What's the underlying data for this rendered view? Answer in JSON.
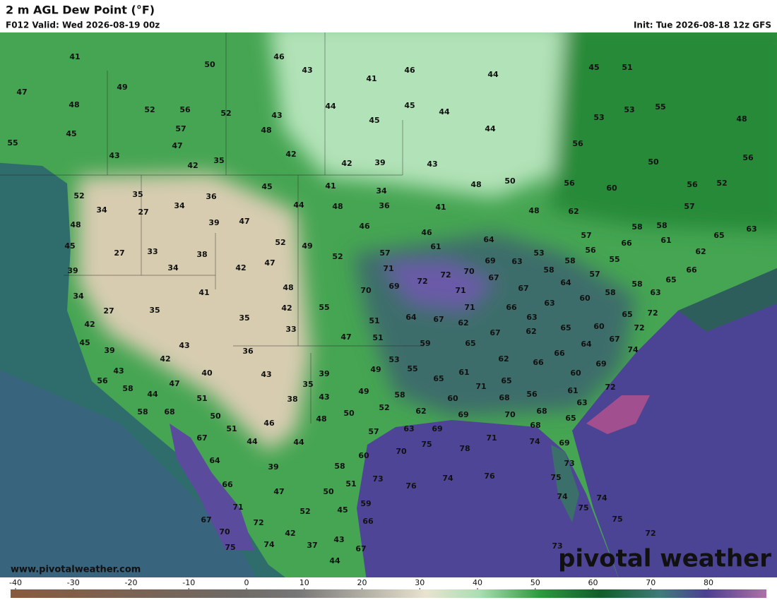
{
  "header": {
    "title": "2 m AGL Dew Point (°F)",
    "valid": "F012 Valid: Wed 2026-08-19 00z",
    "init": "Init: Tue 2026-08-18 12z GFS"
  },
  "map": {
    "labels": [
      41,
      47,
      49,
      48,
      45,
      55,
      43,
      50,
      46,
      43,
      41,
      46,
      44,
      45,
      51,
      52,
      56,
      52,
      43,
      44,
      45,
      44,
      53,
      55,
      48,
      57,
      48,
      45,
      44,
      53,
      47,
      56,
      42,
      35,
      42,
      42,
      39,
      43,
      50,
      56,
      52,
      35,
      36,
      45,
      41,
      34,
      48,
      50,
      56,
      60,
      56,
      52,
      34,
      27,
      34,
      44,
      48,
      36,
      41,
      48,
      62,
      57,
      48,
      39,
      47,
      46,
      46,
      58,
      58,
      65,
      63,
      45,
      27,
      33,
      38,
      52,
      49,
      61,
      64,
      57,
      66,
      61,
      62,
      52,
      57,
      69,
      63,
      53,
      56,
      55,
      39,
      34,
      42,
      47,
      71,
      72,
      70,
      67,
      58,
      58,
      57,
      66,
      65,
      58,
      34,
      41,
      48,
      70,
      69,
      72,
      71,
      67,
      64,
      58,
      60,
      63,
      27,
      35,
      42,
      55,
      71,
      66,
      63,
      65,
      72,
      42,
      35,
      33,
      51,
      64,
      67,
      62,
      63,
      60,
      72,
      45,
      43,
      47,
      51,
      67,
      62,
      65,
      67,
      39,
      36,
      65,
      59,
      64,
      74,
      42,
      40,
      53,
      66,
      62,
      66,
      69,
      43,
      43,
      39,
      49,
      55,
      61,
      60,
      56,
      58,
      35,
      47,
      65,
      71,
      65,
      56,
      61,
      72,
      44,
      51,
      38,
      49,
      58,
      43,
      60,
      68,
      63,
      58,
      68,
      50,
      48,
      52,
      62,
      69,
      70,
      68,
      51,
      46,
      50,
      57,
      63,
      69,
      65,
      68,
      67,
      44,
      44,
      75,
      78,
      71,
      74,
      69,
      70,
      64,
      60,
      58,
      73,
      39,
      66,
      76,
      74,
      76,
      75,
      51,
      73,
      47,
      50,
      74,
      74,
      71,
      75,
      52,
      45,
      59,
      67,
      72,
      66,
      75,
      70,
      42,
      72,
      75,
      74,
      37,
      43,
      67,
      73,
      44
    ]
  },
  "footer": {
    "site": "www.pivotalweather.com",
    "brand": "pivotal weather"
  },
  "colorbar": {
    "ticks": [
      -40,
      -30,
      -20,
      -10,
      0,
      10,
      20,
      30,
      40,
      50,
      60,
      70,
      80
    ]
  }
}
